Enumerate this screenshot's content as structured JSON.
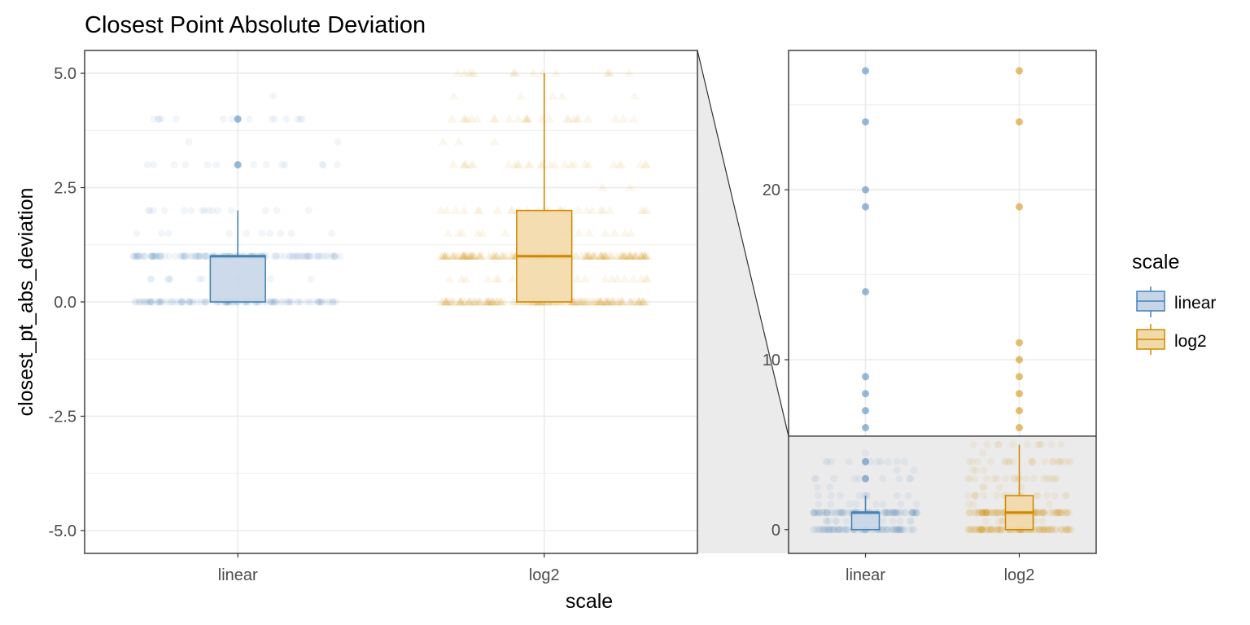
{
  "colors": {
    "linear": "#4682B4",
    "linear_fill": "#C6D6E8",
    "log2": "#D08A00",
    "log2_fill": "#F2D9A8",
    "grid": "#EBEBEB",
    "zoom_bg": "#EBEBEB",
    "axis_text": "#4D4D4D"
  },
  "chart_data": [
    {
      "type": "box",
      "panel": "main",
      "title": "Closest Point Absolute Deviation",
      "xlabel": "scale",
      "ylabel": "closest_pt_abs_deviation",
      "categories": [
        "linear",
        "log2"
      ],
      "ylim": [
        -5.5,
        5.5
      ],
      "y_ticks": [
        5,
        2.5,
        0,
        -2.5,
        -5
      ],
      "y_tick_labels": [
        "5.0",
        "2.5",
        "0.0",
        "-2.5",
        "-5.0"
      ],
      "grid": true,
      "series": [
        {
          "name": "linear",
          "marker": "circle",
          "q1": 0,
          "median": 1,
          "q3": 1,
          "whisker_low": 0,
          "whisker_high": 2,
          "outliers": [
            3,
            4
          ]
        },
        {
          "name": "log2",
          "marker": "triangle",
          "q1": 0,
          "median": 1,
          "q3": 2,
          "whisker_low": 0,
          "whisker_high": 5,
          "outliers": []
        }
      ]
    },
    {
      "type": "box",
      "panel": "zoom",
      "categories": [
        "linear",
        "log2"
      ],
      "ylim": [
        -1.4,
        28.2
      ],
      "y_ticks": [
        0,
        10,
        20
      ],
      "y_tick_labels": [
        "0",
        "10",
        "20"
      ],
      "zoom_range": [
        -5.5,
        5.5
      ],
      "grid": true,
      "series": [
        {
          "name": "linear",
          "q1": 0,
          "median": 1,
          "q3": 1,
          "whisker_low": 0,
          "whisker_high": 2,
          "outliers": [
            3,
            4,
            6,
            7,
            8,
            9,
            14,
            19,
            20,
            24,
            27
          ]
        },
        {
          "name": "log2",
          "q1": 0,
          "median": 1,
          "q3": 2,
          "whisker_low": 0,
          "whisker_high": 5,
          "outliers": [
            6,
            7,
            8,
            9,
            10,
            11,
            19,
            24,
            27
          ]
        }
      ]
    }
  ],
  "legend": {
    "title": "scale",
    "position": "right",
    "items": [
      {
        "label": "linear",
        "key": "linear"
      },
      {
        "label": "log2",
        "key": "log2"
      }
    ]
  }
}
